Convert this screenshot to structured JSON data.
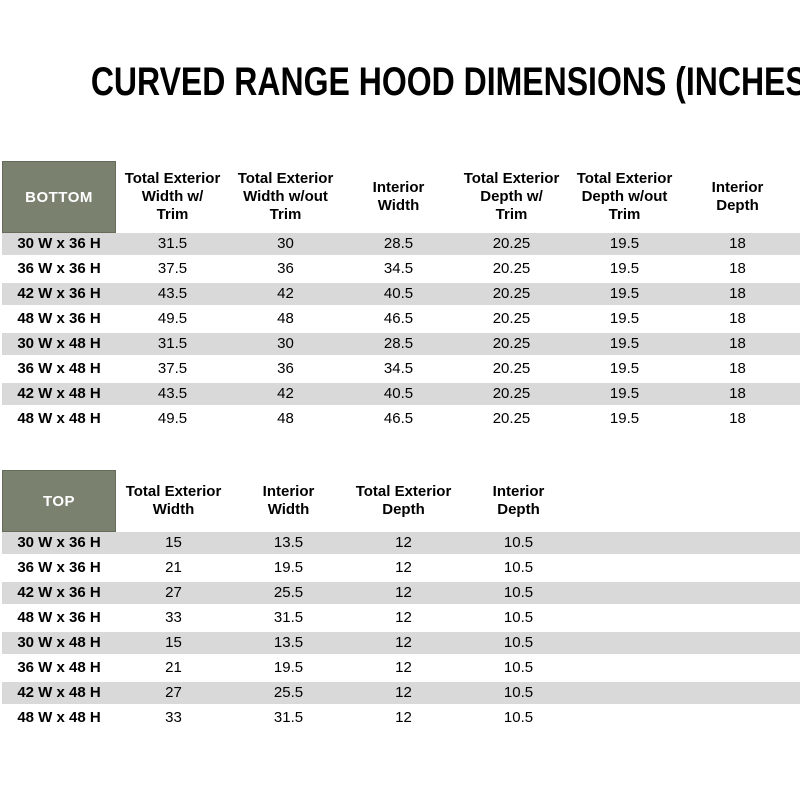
{
  "page": {
    "title": "CURVED RANGE HOOD DIMENSIONS (INCHES)"
  },
  "colors": {
    "header_green": "#7A816E",
    "header_green_border": "#656C59",
    "stripe_gray": "#D9D9D9",
    "corner_text": "#FFFFFF",
    "body_text": "#000000"
  },
  "tables": [
    {
      "id": "bottom",
      "corner_label": "BOTTOM",
      "columns": [
        "Total Exterior\nWidth w/\nTrim",
        "Total Exterior\nWidth w/out\nTrim",
        "Interior\nWidth",
        "Total Exterior\nDepth w/\nTrim",
        "Total Exterior\nDepth w/out\nTrim",
        "Interior\nDepth"
      ],
      "rows": [
        {
          "label": "30 W x 36 H",
          "values": [
            "31.5",
            "30",
            "28.5",
            "20.25",
            "19.5",
            "18"
          ]
        },
        {
          "label": "36 W x 36 H",
          "values": [
            "37.5",
            "36",
            "34.5",
            "20.25",
            "19.5",
            "18"
          ]
        },
        {
          "label": "42 W x 36 H",
          "values": [
            "43.5",
            "42",
            "40.5",
            "20.25",
            "19.5",
            "18"
          ]
        },
        {
          "label": "48 W x 36 H",
          "values": [
            "49.5",
            "48",
            "46.5",
            "20.25",
            "19.5",
            "18"
          ]
        },
        {
          "label": "30 W x 48 H",
          "values": [
            "31.5",
            "30",
            "28.5",
            "20.25",
            "19.5",
            "18"
          ]
        },
        {
          "label": "36 W x 48 H",
          "values": [
            "37.5",
            "36",
            "34.5",
            "20.25",
            "19.5",
            "18"
          ]
        },
        {
          "label": "42 W x 48 H",
          "values": [
            "43.5",
            "42",
            "40.5",
            "20.25",
            "19.5",
            "18"
          ]
        },
        {
          "label": "48 W x 48 H",
          "values": [
            "49.5",
            "48",
            "46.5",
            "20.25",
            "19.5",
            "18"
          ]
        }
      ]
    },
    {
      "id": "top",
      "corner_label": "TOP",
      "columns": [
        "Total Exterior\nWidth",
        "Interior\nWidth",
        "Total Exterior\nDepth",
        "Interior\nDepth"
      ],
      "rows": [
        {
          "label": "30 W x 36 H",
          "values": [
            "15",
            "13.5",
            "12",
            "10.5"
          ]
        },
        {
          "label": "36 W x 36 H",
          "values": [
            "21",
            "19.5",
            "12",
            "10.5"
          ]
        },
        {
          "label": "42 W x 36 H",
          "values": [
            "27",
            "25.5",
            "12",
            "10.5"
          ]
        },
        {
          "label": "48 W x 36 H",
          "values": [
            "33",
            "31.5",
            "12",
            "10.5"
          ]
        },
        {
          "label": "30 W x 48 H",
          "values": [
            "15",
            "13.5",
            "12",
            "10.5"
          ]
        },
        {
          "label": "36 W x 48 H",
          "values": [
            "21",
            "19.5",
            "12",
            "10.5"
          ]
        },
        {
          "label": "42 W x 48 H",
          "values": [
            "27",
            "25.5",
            "12",
            "10.5"
          ]
        },
        {
          "label": "48 W x 48 H",
          "values": [
            "33",
            "31.5",
            "12",
            "10.5"
          ]
        }
      ]
    }
  ]
}
